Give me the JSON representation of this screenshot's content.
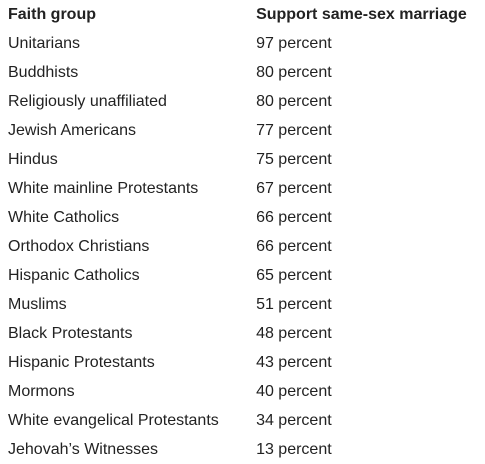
{
  "table": {
    "headers": [
      "Faith group",
      "Support same-sex marriage"
    ],
    "rows": [
      [
        "Unitarians",
        "97 percent"
      ],
      [
        "Buddhists",
        "80 percent"
      ],
      [
        "Religiously unaffiliated",
        "80 percent"
      ],
      [
        "Jewish Americans",
        "77 percent"
      ],
      [
        "Hindus",
        "75 percent"
      ],
      [
        "White mainline Protestants",
        "67 percent"
      ],
      [
        "White Catholics",
        "66 percent"
      ],
      [
        "Orthodox Christians",
        "66 percent"
      ],
      [
        "Hispanic Catholics",
        "65 percent"
      ],
      [
        "Muslims",
        "51 percent"
      ],
      [
        "Black Protestants",
        "48 percent"
      ],
      [
        "Hispanic Protestants",
        "43 percent"
      ],
      [
        "Mormons",
        "40 percent"
      ],
      [
        "White evangelical Protestants",
        "34 percent"
      ],
      [
        "Jehovah’s Witnesses",
        "13 percent"
      ]
    ]
  }
}
